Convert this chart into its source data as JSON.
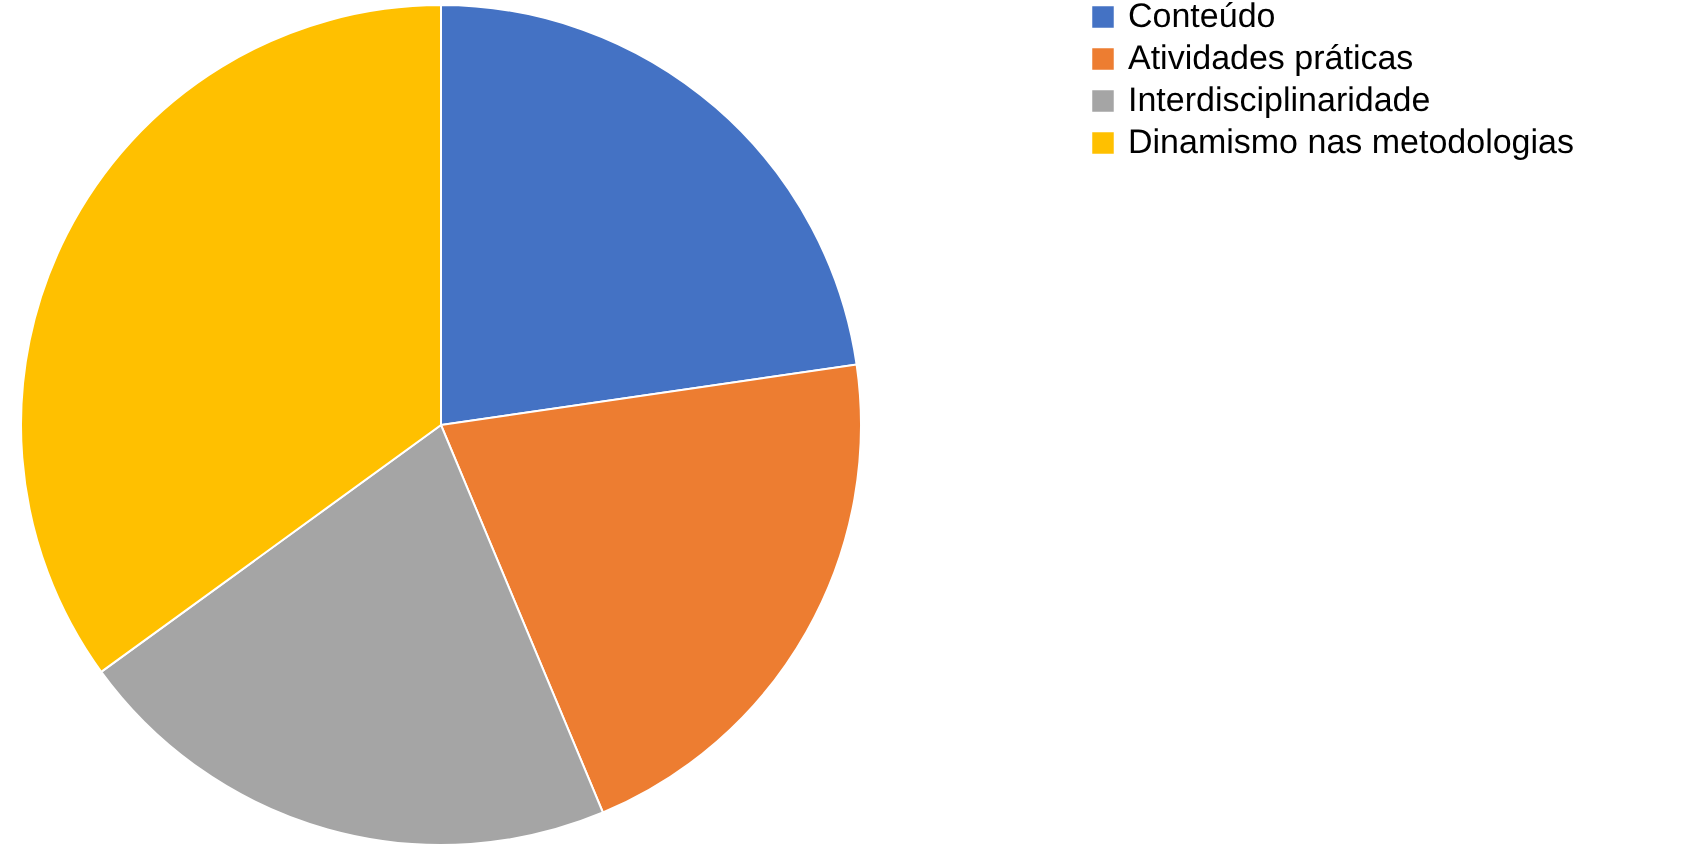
{
  "chart_data": {
    "type": "pie",
    "categories": [
      "Conteúdo",
      "Atividades práticas",
      "Interdisciplinaridade",
      "Dinamismo nas metodologias"
    ],
    "values": [
      22.7,
      21.0,
      21.3,
      35.0
    ],
    "colors": [
      "#4472c4",
      "#ed7d31",
      "#a5a5a5",
      "#ffc000"
    ],
    "legend": "right"
  }
}
